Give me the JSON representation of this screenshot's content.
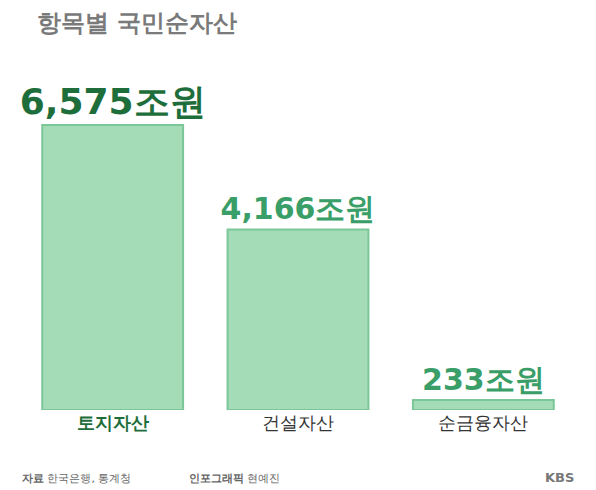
{
  "chart_data": {
    "type": "bar",
    "title": "항목별 국민순자산",
    "categories": [
      "토지자산",
      "건설자산",
      "순금융자산"
    ],
    "values": [
      6575,
      4166,
      233
    ],
    "value_labels": [
      "6,575조원",
      "4,166조원",
      "233조원"
    ],
    "data_labels": true,
    "colors": [
      "#a3dcb7",
      "#a3dcb7",
      "#a3dcb7"
    ],
    "grid": false,
    "tick_labels": "x",
    "source": "자료 한국은행, 통계청",
    "credit": "인포그래픽 현예진",
    "logo": "KBS"
  }
}
